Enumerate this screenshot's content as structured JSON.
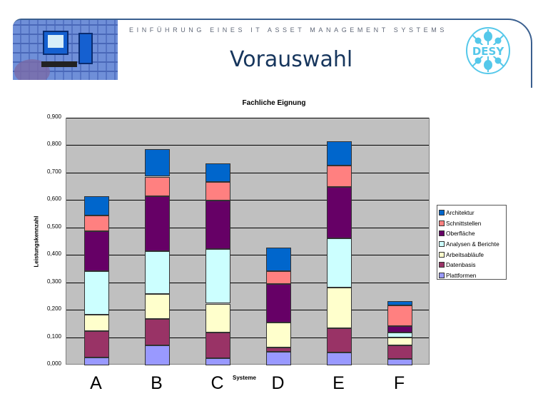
{
  "header": {
    "subtitle": "EINFÜHRUNG EINES IT ASSET MANAGEMENT SYSTEMS",
    "title": "Vorauswahl",
    "logo_text": "DESY"
  },
  "chart_data": {
    "type": "bar",
    "stacked": true,
    "title": "Fachliche Eignung",
    "xlabel": "Systeme",
    "ylabel": "Leistungskennzahl",
    "ylim": [
      0,
      0.9
    ],
    "yticks": [
      "0,000",
      "0,100",
      "0,200",
      "0,300",
      "0,400",
      "0,500",
      "0,600",
      "0,700",
      "0,800",
      "0,900"
    ],
    "categories": [
      "A",
      "B",
      "C",
      "D",
      "E",
      "F"
    ],
    "legend_position": "right",
    "series": [
      {
        "name": "Plattformen",
        "color": "#9999ff",
        "values": [
          0.029,
          0.072,
          0.026,
          0.049,
          0.046,
          0.024
        ]
      },
      {
        "name": "Datenbasis",
        "color": "#993366",
        "values": [
          0.095,
          0.097,
          0.094,
          0.017,
          0.088,
          0.049
        ]
      },
      {
        "name": "Arbeitsabläufe",
        "color": "#ffffcc",
        "values": [
          0.06,
          0.09,
          0.105,
          0.091,
          0.149,
          0.028
        ]
      },
      {
        "name": "Analysen & Berichte",
        "color": "#ccffff",
        "values": [
          0.159,
          0.158,
          0.198,
          0.0,
          0.18,
          0.019
        ]
      },
      {
        "name": "Oberfläche",
        "color": "#660066",
        "values": [
          0.146,
          0.199,
          0.178,
          0.139,
          0.188,
          0.023
        ]
      },
      {
        "name": "Schnittstellen",
        "color": "#ff8080",
        "values": [
          0.056,
          0.072,
          0.067,
          0.047,
          0.078,
          0.075
        ]
      },
      {
        "name": "Architektur",
        "color": "#0066cc",
        "values": [
          0.071,
          0.099,
          0.069,
          0.085,
          0.089,
          0.017
        ]
      }
    ]
  }
}
